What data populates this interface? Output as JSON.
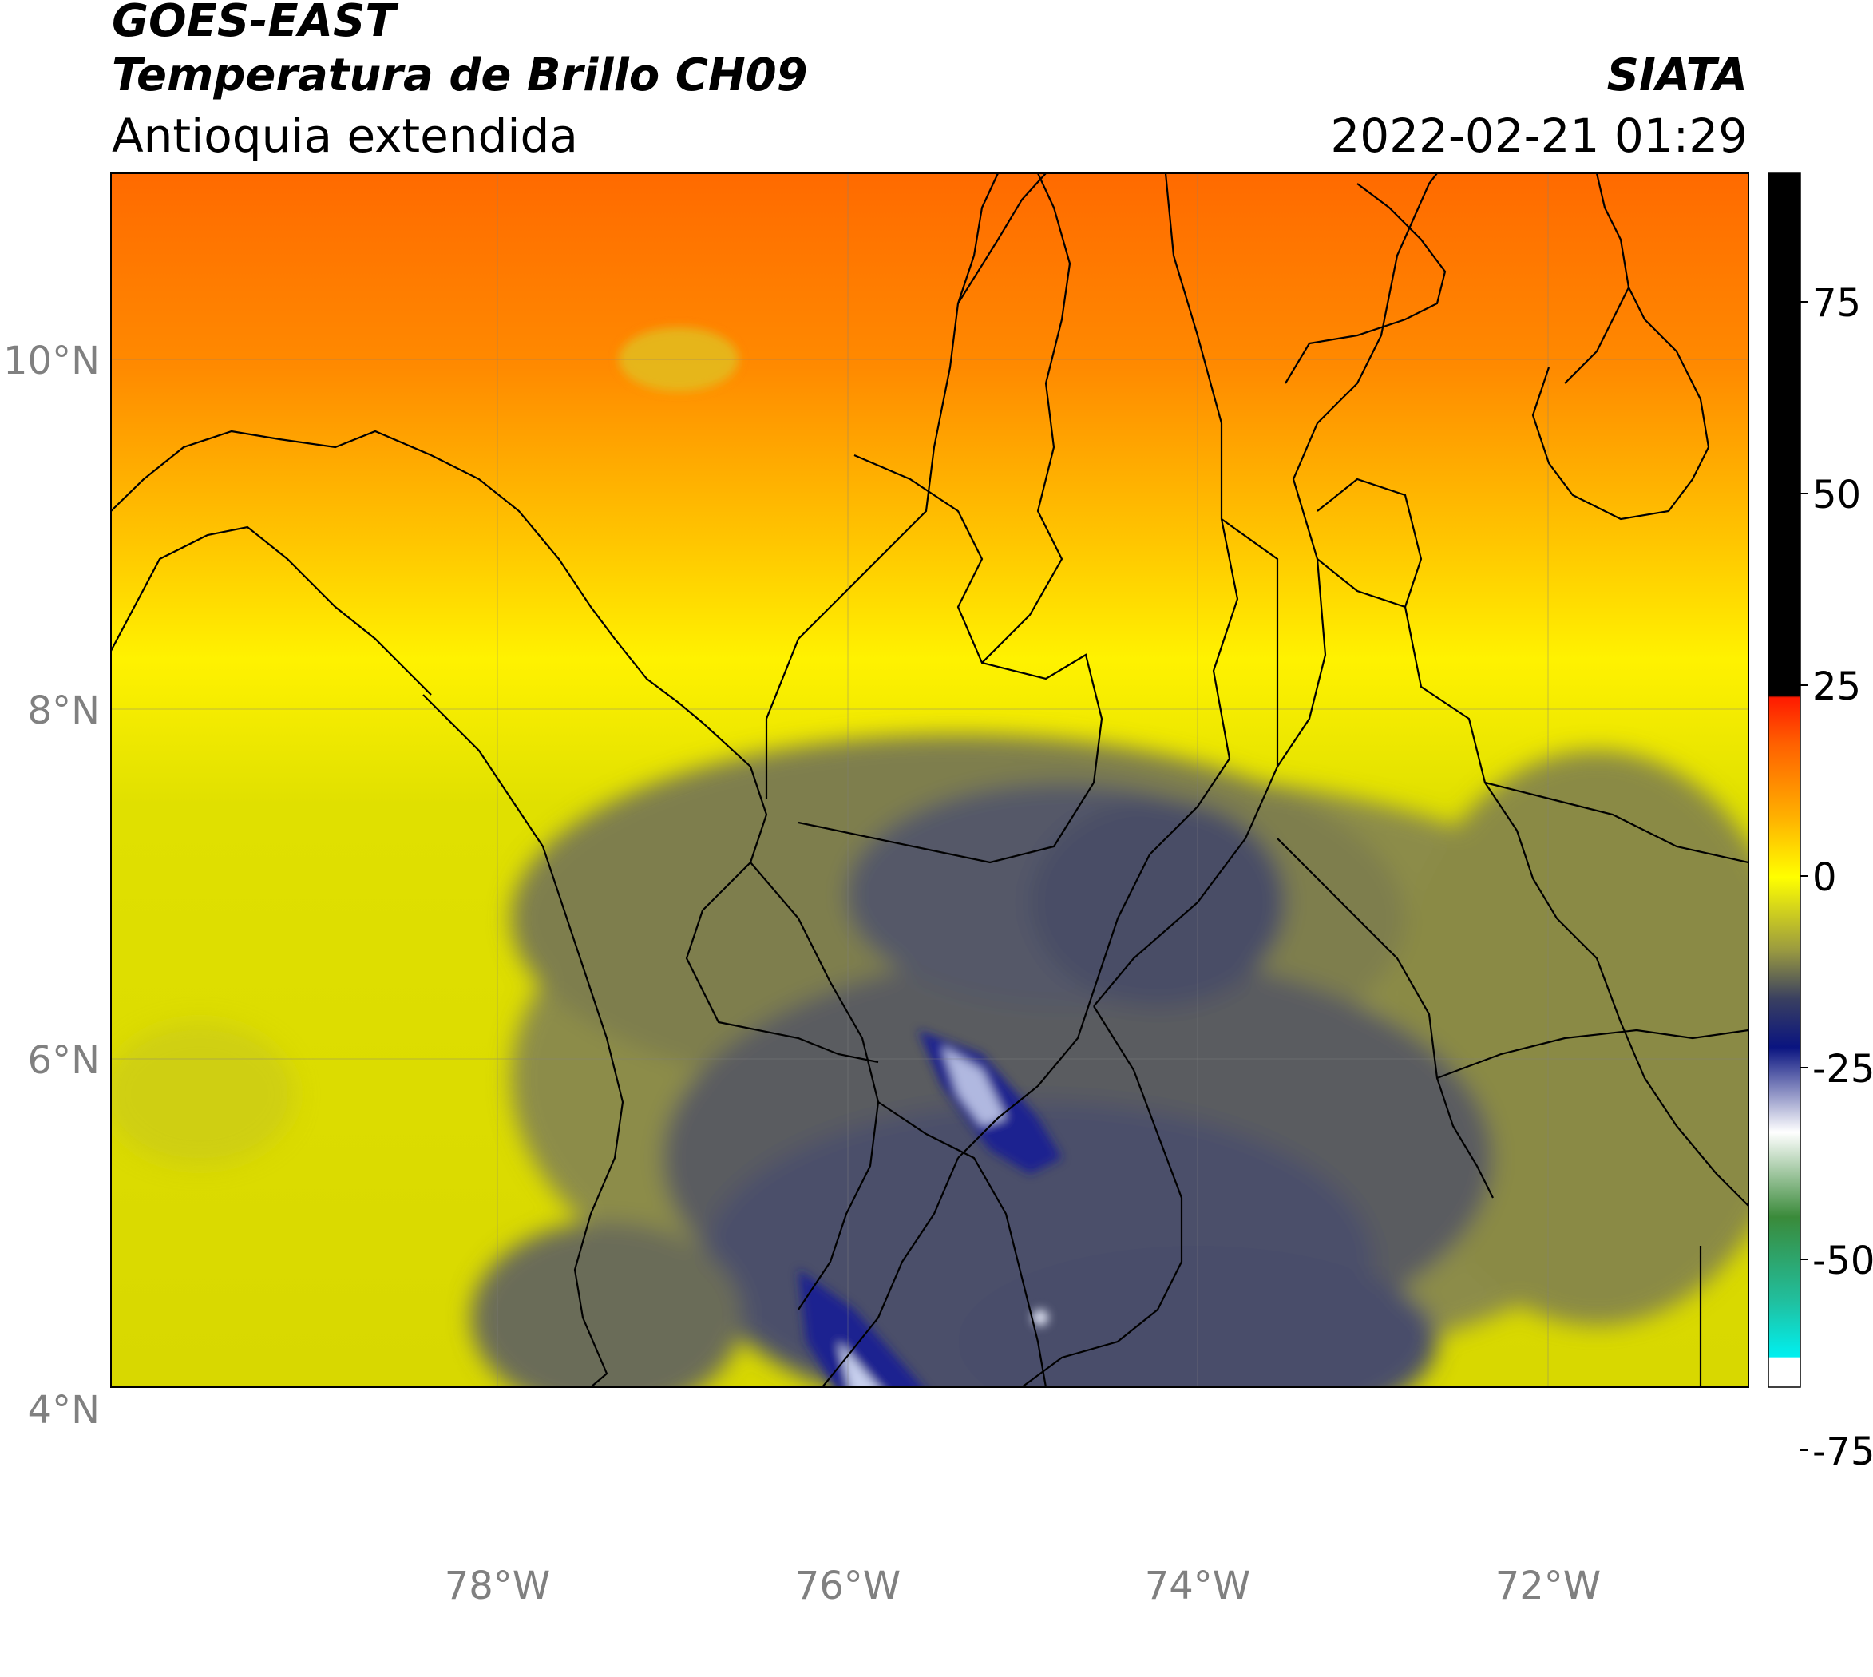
{
  "header": {
    "satellite": "GOES-EAST",
    "product": "Temperatura de Brillo CH09",
    "region": "Antioquia extendida",
    "agency": "SIATA",
    "datetime": "2022-02-21 01:29"
  },
  "map": {
    "lat_labels": [
      "10°N",
      "8°N",
      "6°N",
      "4°N"
    ],
    "lon_labels": [
      "78°W",
      "76°W",
      "74°W",
      "72°W"
    ]
  },
  "colorbar": {
    "tick_labels": [
      "75",
      "50",
      "25",
      "0",
      "-25",
      "-50",
      "-75"
    ],
    "colors": {
      "black": "#000000",
      "red": "#ff1a00",
      "orange": "#ff8000",
      "yellow": "#ffff00",
      "olive": "#9a9a40",
      "slate": "#3a4060",
      "navy": "#0a1480",
      "white": "#ffffff",
      "green": "#3a8a3a",
      "teal": "#20c0a0",
      "cyan": "#00f0f0"
    }
  }
}
